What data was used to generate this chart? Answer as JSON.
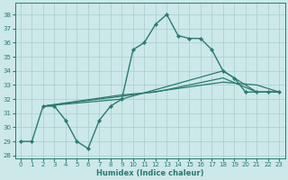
{
  "background_color": "#cce8e8",
  "grid_color": "#aacccc",
  "line_color": "#2a7a70",
  "xlabel": "Humidex (Indice chaleur)",
  "ylabel_min": 28,
  "ylabel_max": 38,
  "xlim": [
    -0.5,
    23.5
  ],
  "ylim": [
    27.8,
    38.8
  ],
  "series": [
    {
      "y": [
        29.0,
        29.0,
        31.5,
        31.5,
        30.5,
        29.0,
        28.5,
        30.5,
        31.5,
        32.0,
        35.5,
        36.0,
        37.3,
        38.0,
        36.5,
        36.3,
        36.3,
        35.5,
        34.0,
        33.5,
        32.5,
        32.5,
        32.5,
        32.5
      ],
      "marker": true,
      "linewidth": 1.0
    },
    {
      "x": [
        2,
        9,
        18,
        21,
        23
      ],
      "y": [
        31.5,
        32.0,
        34.0,
        32.5,
        32.5
      ],
      "marker": false,
      "linewidth": 0.9
    },
    {
      "x": [
        2,
        9,
        18,
        21,
        23
      ],
      "y": [
        31.5,
        32.2,
        33.2,
        33.0,
        32.5
      ],
      "marker": false,
      "linewidth": 0.9
    },
    {
      "x": [
        2,
        9,
        12,
        18,
        21,
        23
      ],
      "y": [
        31.5,
        32.3,
        32.5,
        33.5,
        32.5,
        32.5
      ],
      "marker": false,
      "linewidth": 0.9
    }
  ]
}
